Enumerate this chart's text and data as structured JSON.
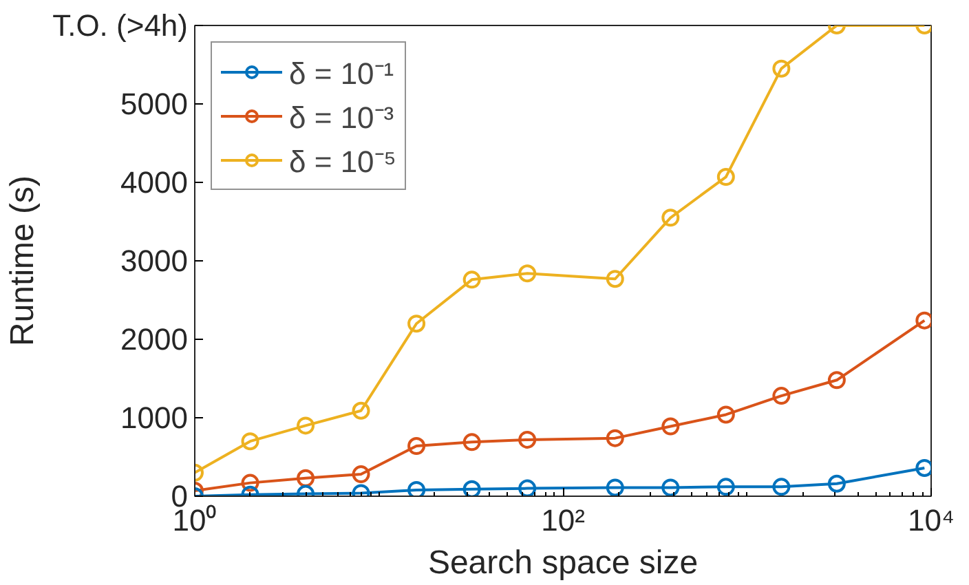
{
  "chart_data": {
    "type": "line",
    "xlabel": "Search space size",
    "ylabel": "Runtime (s)",
    "x": [
      1,
      2,
      4,
      8,
      16,
      32,
      64,
      192,
      384,
      768,
      1536,
      3072,
      9200
    ],
    "series": [
      {
        "name": "δ = 10⁻¹",
        "color": "#0072bd",
        "values": [
          0,
          20,
          30,
          40,
          80,
          90,
          100,
          110,
          110,
          120,
          120,
          160,
          360
        ]
      },
      {
        "name": "δ = 10⁻³",
        "color": "#d95319",
        "values": [
          70,
          170,
          230,
          280,
          640,
          690,
          720,
          740,
          890,
          1040,
          1280,
          1480,
          2240
        ]
      },
      {
        "name": "δ = 10⁻⁵",
        "color": "#edb120",
        "values": [
          300,
          700,
          900,
          1090,
          2200,
          2760,
          2840,
          2770,
          3550,
          4070,
          5450,
          6000,
          6000
        ]
      }
    ],
    "log": "x",
    "xlim": [
      1,
      10000
    ],
    "ylim": [
      0,
      6000
    ],
    "xticks": [
      {
        "value": 1,
        "label": "10⁰"
      },
      {
        "value": 100,
        "label": "10²"
      },
      {
        "value": 10000,
        "label": "10⁴"
      }
    ],
    "yticks": [
      0,
      1000,
      2000,
      3000,
      4000,
      5000,
      {
        "value": 6000,
        "label": "T.O. (>4h)"
      }
    ],
    "grid": false,
    "legend": "top left",
    "marker": "circle",
    "line_style": "solid"
  }
}
